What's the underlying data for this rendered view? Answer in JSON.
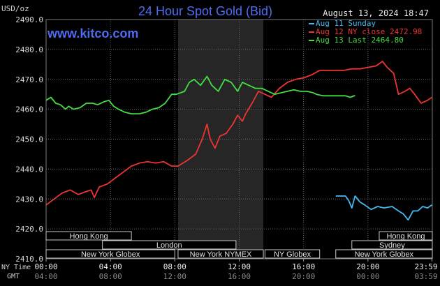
{
  "chart_data": {
    "type": "line",
    "title": "24 Hour Spot Gold (Bid)",
    "source": "www.kitco.com",
    "timestamp": "August 13, 2024 18:47",
    "yunit": "USD/oz",
    "ylim": [
      2410,
      2490
    ],
    "yticks": [
      "2490.0",
      "2480.0",
      "2470.0",
      "2460.0",
      "2450.0",
      "2440.0",
      "2430.0",
      "2420.0",
      "2410.0"
    ],
    "xlim": [
      0,
      24
    ],
    "ny_time_label": "NY Time",
    "gmt_label": "GMT",
    "ny_ticks": [
      "00:00",
      "04:00",
      "08:00",
      "12:00",
      "16:00",
      "20:00",
      "23:59"
    ],
    "gmt_ticks": [
      "04:00",
      "08:00",
      "12:00",
      "16:00",
      "20:00",
      "00:00",
      "03:59"
    ],
    "grid": true,
    "legend_position": "top-right",
    "series": [
      {
        "name": "Aug 11 Sunday",
        "color": "#44b8f2",
        "points": [
          [
            18.0,
            2431.0
          ],
          [
            18.6,
            2431.0
          ],
          [
            18.8,
            2429.5
          ],
          [
            19.0,
            2427.0
          ],
          [
            19.2,
            2431.0
          ],
          [
            19.5,
            2429.0
          ],
          [
            19.8,
            2428.0
          ],
          [
            20.2,
            2426.5
          ],
          [
            20.6,
            2427.5
          ],
          [
            21.0,
            2427.0
          ],
          [
            21.5,
            2427.5
          ],
          [
            21.9,
            2426.0
          ],
          [
            22.2,
            2425.0
          ],
          [
            22.5,
            2423.0
          ],
          [
            22.8,
            2426.0
          ],
          [
            23.1,
            2426.0
          ],
          [
            23.4,
            2427.5
          ],
          [
            23.7,
            2427.0
          ],
          [
            23.98,
            2428.0
          ]
        ]
      },
      {
        "name": "Aug 12 NY close 2472.98",
        "color": "#ee3333",
        "points": [
          [
            0.0,
            2428.0
          ],
          [
            0.5,
            2430.0
          ],
          [
            1.0,
            2432.0
          ],
          [
            1.5,
            2433.0
          ],
          [
            2.0,
            2431.5
          ],
          [
            2.5,
            2432.5
          ],
          [
            2.8,
            2433.0
          ],
          [
            3.0,
            2430.5
          ],
          [
            3.3,
            2434.0
          ],
          [
            3.8,
            2435.0
          ],
          [
            4.3,
            2437.0
          ],
          [
            4.8,
            2439.0
          ],
          [
            5.3,
            2441.0
          ],
          [
            5.8,
            2442.0
          ],
          [
            6.3,
            2442.5
          ],
          [
            6.8,
            2442.0
          ],
          [
            7.3,
            2442.5
          ],
          [
            7.8,
            2441.0
          ],
          [
            8.2,
            2441.0
          ],
          [
            8.8,
            2443.0
          ],
          [
            9.3,
            2445.0
          ],
          [
            9.7,
            2450.0
          ],
          [
            10.0,
            2455.0
          ],
          [
            10.2,
            2450.0
          ],
          [
            10.5,
            2447.0
          ],
          [
            10.8,
            2451.0
          ],
          [
            11.2,
            2452.0
          ],
          [
            11.6,
            2455.0
          ],
          [
            11.9,
            2458.0
          ],
          [
            12.2,
            2456.0
          ],
          [
            12.4,
            2458.5
          ],
          [
            12.8,
            2462.0
          ],
          [
            13.2,
            2466.0
          ],
          [
            13.6,
            2465.0
          ],
          [
            14.0,
            2464.0
          ],
          [
            14.5,
            2467.0
          ],
          [
            15.0,
            2469.0
          ],
          [
            15.5,
            2470.0
          ],
          [
            16.0,
            2470.5
          ],
          [
            16.5,
            2471.5
          ],
          [
            17.0,
            2473.0
          ],
          [
            17.5,
            2473.0
          ],
          [
            18.0,
            2473.0
          ],
          [
            18.5,
            2473.0
          ],
          [
            19.0,
            2473.5
          ],
          [
            19.5,
            2473.5
          ],
          [
            20.0,
            2474.0
          ],
          [
            20.5,
            2474.5
          ],
          [
            20.9,
            2476.0
          ],
          [
            21.2,
            2474.0
          ],
          [
            21.6,
            2472.0
          ],
          [
            21.9,
            2465.0
          ],
          [
            22.3,
            2466.0
          ],
          [
            22.6,
            2467.0
          ],
          [
            22.9,
            2465.0
          ],
          [
            23.3,
            2462.0
          ],
          [
            23.7,
            2463.0
          ],
          [
            23.98,
            2464.0
          ]
        ]
      },
      {
        "name": "Aug 13 Last 2464.80",
        "color": "#44dd44",
        "points": [
          [
            0.0,
            2463.0
          ],
          [
            0.3,
            2464.0
          ],
          [
            0.6,
            2462.0
          ],
          [
            0.9,
            2461.5
          ],
          [
            1.2,
            2460.0
          ],
          [
            1.4,
            2461.0
          ],
          [
            1.7,
            2460.0
          ],
          [
            2.1,
            2460.5
          ],
          [
            2.5,
            2462.0
          ],
          [
            2.9,
            2462.0
          ],
          [
            3.2,
            2461.5
          ],
          [
            3.6,
            2462.5
          ],
          [
            3.9,
            2463.0
          ],
          [
            4.2,
            2461.0
          ],
          [
            4.5,
            2460.0
          ],
          [
            4.9,
            2459.0
          ],
          [
            5.3,
            2458.5
          ],
          [
            5.8,
            2458.5
          ],
          [
            6.2,
            2459.0
          ],
          [
            6.6,
            2460.0
          ],
          [
            7.0,
            2460.5
          ],
          [
            7.4,
            2462.0
          ],
          [
            7.8,
            2465.0
          ],
          [
            8.1,
            2465.0
          ],
          [
            8.6,
            2466.0
          ],
          [
            8.9,
            2469.0
          ],
          [
            9.2,
            2470.0
          ],
          [
            9.6,
            2468.0
          ],
          [
            10.0,
            2471.0
          ],
          [
            10.3,
            2468.0
          ],
          [
            10.7,
            2466.0
          ],
          [
            11.1,
            2470.0
          ],
          [
            11.5,
            2469.0
          ],
          [
            11.9,
            2466.0
          ],
          [
            12.2,
            2469.0
          ],
          [
            12.6,
            2468.0
          ],
          [
            13.0,
            2467.0
          ],
          [
            13.4,
            2467.0
          ],
          [
            13.8,
            2466.0
          ],
          [
            14.2,
            2465.0
          ],
          [
            14.6,
            2465.5
          ],
          [
            15.0,
            2466.0
          ],
          [
            15.4,
            2466.5
          ],
          [
            15.8,
            2466.0
          ],
          [
            16.2,
            2466.0
          ],
          [
            16.6,
            2465.5
          ],
          [
            16.8,
            2465.0
          ],
          [
            17.2,
            2464.5
          ],
          [
            17.8,
            2464.5
          ],
          [
            18.3,
            2464.5
          ],
          [
            18.6,
            2464.5
          ],
          [
            18.9,
            2464.0
          ],
          [
            19.2,
            2464.6
          ]
        ]
      }
    ]
  },
  "sessions": [
    {
      "label": "Hong Kong",
      "row": 0,
      "start": -1,
      "end": 5.3
    },
    {
      "label": "Hong Kong",
      "row": 0,
      "start": 20.7,
      "end": 24.5
    },
    {
      "label": "London",
      "row": 1,
      "start": 3.5,
      "end": 11.8
    },
    {
      "label": "Sydney",
      "row": 1,
      "start": 19.0,
      "end": 24.5
    },
    {
      "label": "New York Globex",
      "row": 2,
      "start": -1,
      "end": 8.0
    },
    {
      "label": "New York NYMEX",
      "row": 2,
      "start": 8.2,
      "end": 13.5
    },
    {
      "label": "NY Globex",
      "row": 2,
      "start": 13.6,
      "end": 17.0
    },
    {
      "label": "New York Globex",
      "row": 2,
      "start": 18.0,
      "end": 24.5
    }
  ],
  "nymex_shade": [
    8.2,
    13.5
  ]
}
